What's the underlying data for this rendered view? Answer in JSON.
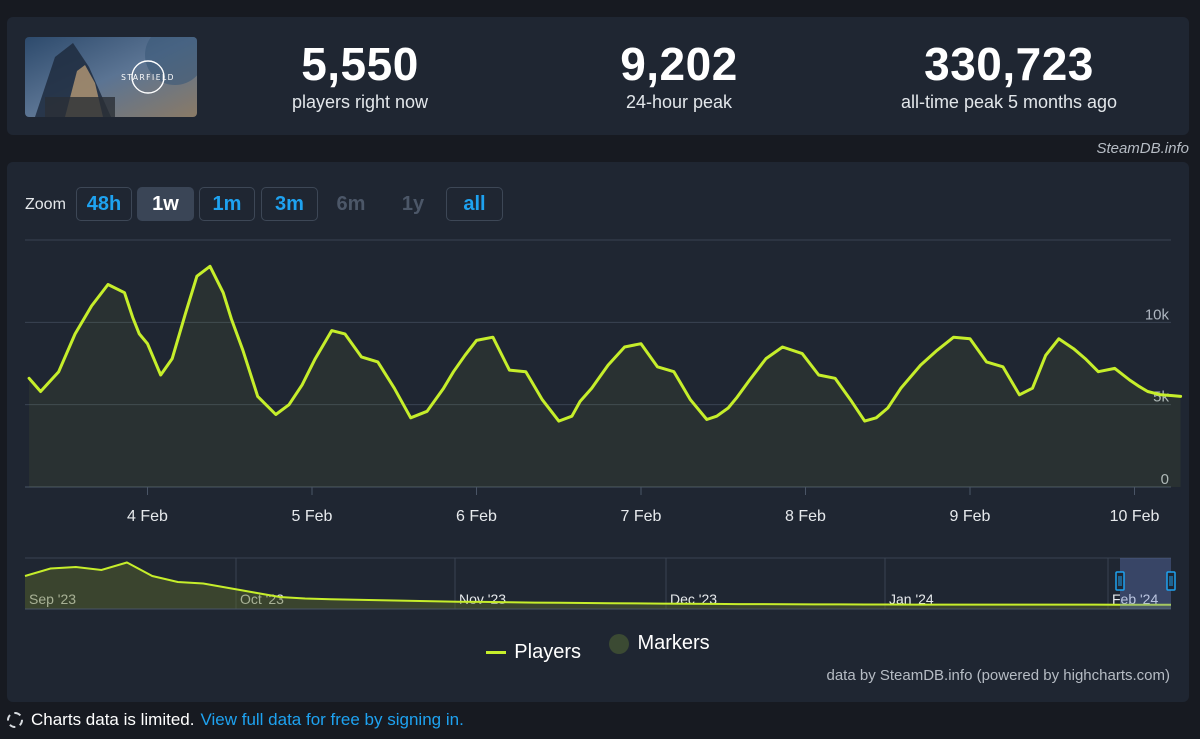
{
  "game": {
    "logo_text": "STARFIELD"
  },
  "stats": [
    {
      "value": "5,550",
      "label": "players right now"
    },
    {
      "value": "9,202",
      "label": "24-hour peak"
    },
    {
      "value": "330,723",
      "label": "all-time peak 5 months ago"
    }
  ],
  "credit_top": "SteamDB.info",
  "zoom": {
    "label": "Zoom",
    "buttons": [
      {
        "label": "48h",
        "state": "enabled"
      },
      {
        "label": "1w",
        "state": "active"
      },
      {
        "label": "1m",
        "state": "enabled"
      },
      {
        "label": "3m",
        "state": "enabled"
      },
      {
        "label": "6m",
        "state": "disabled"
      },
      {
        "label": "1y",
        "state": "disabled"
      },
      {
        "label": "all",
        "state": "enabled"
      }
    ]
  },
  "chart_data": {
    "type": "line",
    "title": "",
    "xlabel": "",
    "ylabel": "",
    "ylim": [
      0,
      15000
    ],
    "yticks": [
      "0",
      "5k",
      "10k"
    ],
    "grid": true,
    "legend_position": "bottom",
    "x_ticks": [
      "4 Feb",
      "5 Feb",
      "6 Feb",
      "7 Feb",
      "8 Feb",
      "9 Feb",
      "10 Feb"
    ],
    "series": [
      {
        "name": "Players",
        "color": "#c6ee2b",
        "x_days": [
          0.0,
          0.07,
          0.18,
          0.28,
          0.38,
          0.48,
          0.58,
          0.63,
          0.67,
          0.72,
          0.8,
          0.87,
          0.95,
          1.02,
          1.1,
          1.18,
          1.23,
          1.3,
          1.39,
          1.5,
          1.58,
          1.66,
          1.74,
          1.84,
          1.92,
          2.02,
          2.12,
          2.22,
          2.32,
          2.42,
          2.52,
          2.58,
          2.65,
          2.72,
          2.82,
          2.92,
          3.02,
          3.12,
          3.22,
          3.3,
          3.35,
          3.42,
          3.52,
          3.62,
          3.72,
          3.82,
          3.92,
          4.02,
          4.12,
          4.18,
          4.25,
          4.3,
          4.38,
          4.48,
          4.58,
          4.7,
          4.8,
          4.9,
          5.0,
          5.08,
          5.15,
          5.22,
          5.3,
          5.42,
          5.52,
          5.62,
          5.72,
          5.82,
          5.92,
          6.02,
          6.1,
          6.18,
          6.26,
          6.35,
          6.42,
          6.5,
          6.6,
          6.69,
          6.75,
          6.8,
          6.88,
          6.95,
          7.0
        ],
        "values": [
          6600,
          5800,
          7000,
          9300,
          11000,
          12300,
          11800,
          10300,
          9300,
          8700,
          6800,
          7800,
          10500,
          12800,
          13400,
          11800,
          10200,
          8300,
          5500,
          4400,
          5000,
          6200,
          7800,
          9500,
          9300,
          7900,
          7600,
          6000,
          4200,
          4600,
          6000,
          7000,
          8000,
          8900,
          9100,
          7100,
          7000,
          5300,
          4000,
          4300,
          5200,
          6000,
          7400,
          8500,
          8700,
          7300,
          7000,
          5300,
          4100,
          4300,
          4800,
          5400,
          6500,
          7800,
          8500,
          8100,
          6800,
          6600,
          5200,
          4000,
          4200,
          4800,
          6000,
          7400,
          8300,
          9100,
          9000,
          7600,
          7300,
          5600,
          6000,
          8000,
          9000,
          8400,
          7800,
          7000,
          7200,
          6500,
          6100,
          5800,
          5600,
          5550,
          5500
        ]
      }
    ],
    "navigator": {
      "x_labels": [
        "Sep '23",
        "Oct '23",
        "Nov '23",
        "Dec '23",
        "Jan '24",
        "Feb '24"
      ],
      "values": [
        200000,
        250000,
        260000,
        240000,
        290000,
        200000,
        160000,
        150000,
        120000,
        90000,
        60000,
        50000,
        45000,
        42000,
        38000,
        35000,
        32000,
        28000,
        27000,
        25000,
        23000,
        22000,
        20000,
        18000,
        17000,
        16000,
        15000,
        14000,
        13000,
        12500,
        12000,
        11000,
        10500,
        10000,
        9800,
        9600,
        9500,
        9400,
        9300,
        9200,
        9100,
        9000,
        9000,
        8900,
        8800,
        8700
      ]
    },
    "legend": [
      "Players",
      "Markers"
    ]
  },
  "credit_bottom": "data by SteamDB.info (powered by highcharts.com)",
  "notice": {
    "text": "Charts data is limited.",
    "link": "View full data for free by signing in."
  }
}
